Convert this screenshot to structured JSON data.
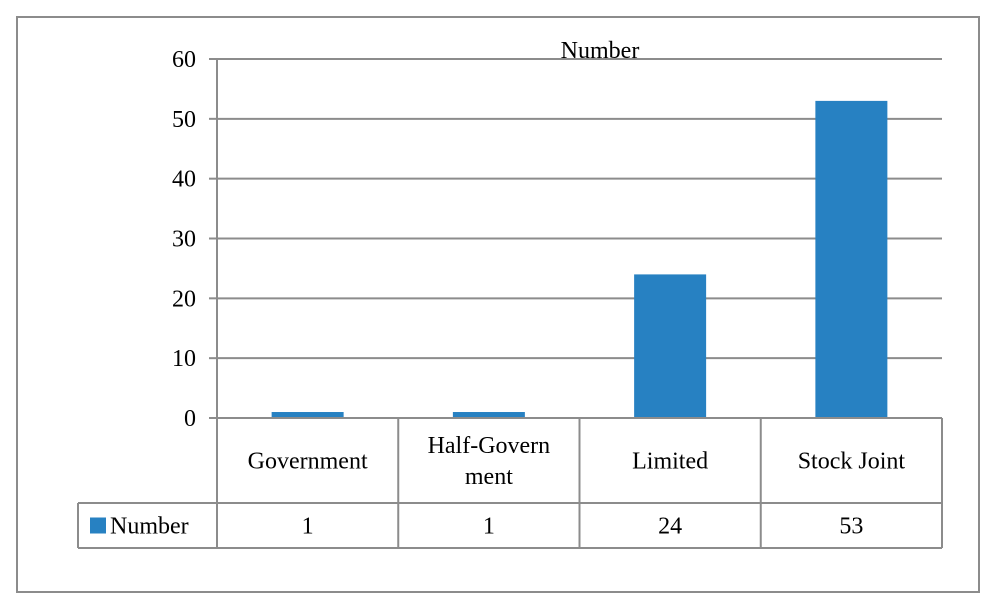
{
  "chart_data": {
    "type": "bar",
    "title": "Number",
    "categories": [
      "Government",
      "Half-Government",
      "Limited",
      "Stock Joint"
    ],
    "category_label_lines": [
      [
        "Government"
      ],
      [
        "Half-Govern",
        "ment"
      ],
      [
        "Limited"
      ],
      [
        "Stock Joint"
      ]
    ],
    "series": [
      {
        "name": "Number",
        "values": [
          1,
          1,
          24,
          53
        ],
        "color": "#2781c2"
      }
    ],
    "ylim": [
      0,
      60
    ],
    "yticks": [
      "0",
      "10",
      "20",
      "30",
      "40",
      "50",
      "60"
    ],
    "grid": true,
    "legend": "data-table",
    "data_table": {
      "series_label": "Number",
      "values": [
        "1",
        "1",
        "24",
        "53"
      ]
    },
    "colors": {
      "bar": "#2781c2",
      "grid": "#8c8c8c",
      "frame": "#8c8c8c"
    }
  }
}
